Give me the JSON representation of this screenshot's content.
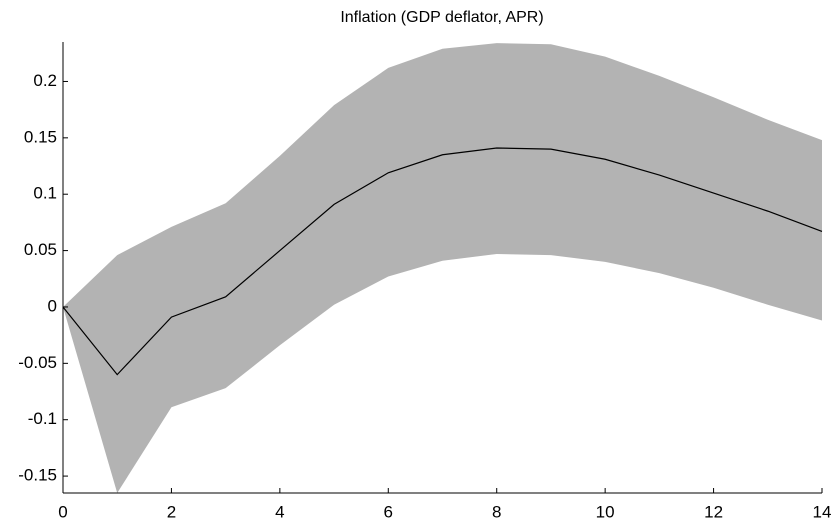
{
  "chart_data": {
    "type": "line",
    "title": "Inflation (GDP deflator, APR)",
    "x": [
      0,
      1,
      2,
      3,
      4,
      5,
      6,
      7,
      8,
      9,
      10,
      11,
      12,
      13,
      14
    ],
    "values": [
      0,
      -0.06,
      -0.009,
      0.009,
      0.05,
      0.091,
      0.119,
      0.135,
      0.141,
      0.14,
      0.131,
      0.117,
      0.101,
      0.085,
      0.067
    ],
    "upper": [
      0,
      0.046,
      0.071,
      0.092,
      0.134,
      0.179,
      0.212,
      0.229,
      0.234,
      0.233,
      0.222,
      0.205,
      0.186,
      0.166,
      0.148
    ],
    "lower": [
      0,
      -0.165,
      -0.089,
      -0.072,
      -0.034,
      0.002,
      0.027,
      0.041,
      0.047,
      0.046,
      0.04,
      0.03,
      0.017,
      0.002,
      -0.012
    ],
    "color": "#000000",
    "band_color": "#b3b3b3",
    "xlim": [
      0,
      14
    ],
    "xticks": [
      0,
      2,
      4,
      6,
      8,
      10,
      12,
      14
    ],
    "ylim": [
      -0.165,
      0.235
    ],
    "yticks": [
      -0.15,
      -0.1,
      -0.05,
      0,
      0.05,
      0.1,
      0.15,
      0.2
    ]
  }
}
